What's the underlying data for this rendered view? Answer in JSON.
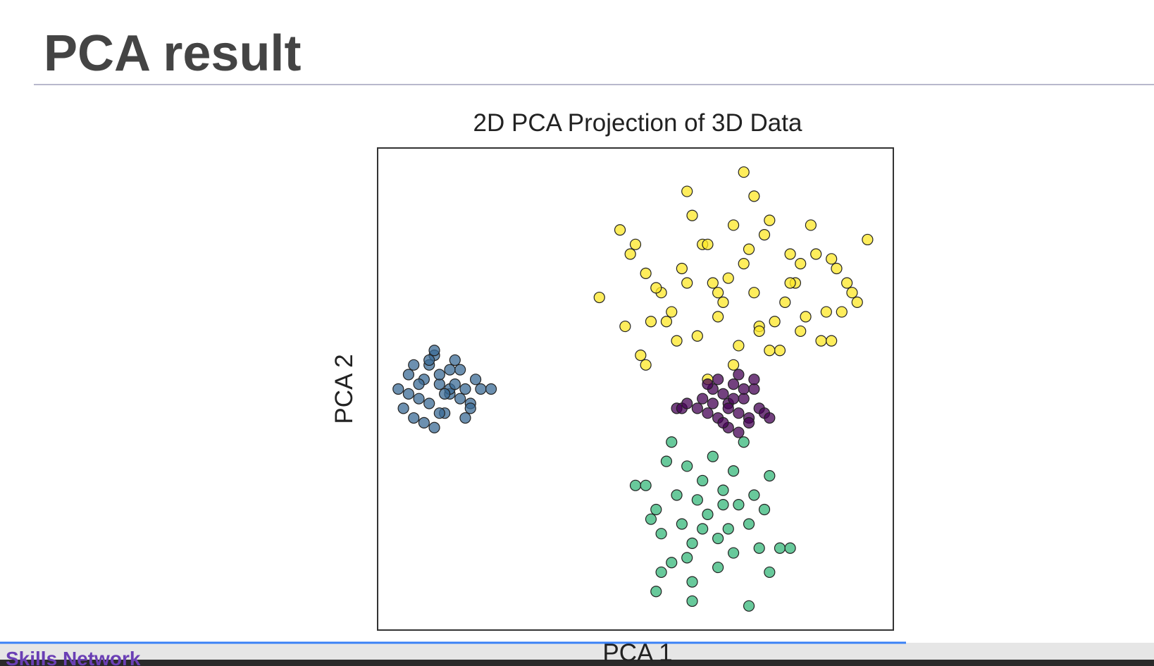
{
  "header": {
    "title": "PCA result"
  },
  "chart_data": {
    "type": "scatter",
    "title": "2D PCA Projection of 3D Data",
    "x_label": "PCA 1",
    "y_label": "PCA 2",
    "xlim": [
      0,
      100
    ],
    "ylim": [
      0,
      100
    ],
    "series": [
      {
        "color": "#3b6b96",
        "x": [
          4,
          6,
          8,
          10,
          12,
          14,
          16,
          18,
          20,
          22,
          5,
          7,
          9,
          11,
          13,
          15,
          17,
          19,
          6,
          8,
          10,
          12,
          14,
          16,
          18,
          9,
          11,
          13,
          15,
          7,
          10,
          12,
          14,
          17,
          11
        ],
        "values": [
          50,
          53,
          48,
          55,
          51,
          49,
          54,
          47,
          50,
          50,
          46,
          44,
          52,
          57,
          45,
          56,
          44,
          52,
          49,
          51,
          47,
          53,
          50,
          48,
          46,
          43,
          42,
          49,
          51,
          55,
          56,
          45,
          54,
          50,
          58
        ]
      },
      {
        "color": "#fde725",
        "x": [
          43,
          47,
          49,
          52,
          55,
          57,
          59,
          61,
          63,
          65,
          67,
          69,
          71,
          73,
          75,
          77,
          79,
          81,
          83,
          85,
          87,
          89,
          91,
          93,
          95,
          48,
          53,
          58,
          62,
          66,
          70,
          74,
          78,
          82,
          86,
          90,
          50,
          54,
          60,
          64,
          68,
          72,
          76,
          80,
          84,
          88,
          92,
          51,
          56,
          66,
          74,
          80,
          88,
          71,
          60,
          73,
          82,
          52,
          69,
          76,
          64
        ],
        "values": [
          69,
          83,
          78,
          74,
          70,
          66,
          75,
          86,
          80,
          72,
          68,
          84,
          76,
          70,
          82,
          64,
          68,
          72,
          65,
          78,
          66,
          75,
          72,
          68,
          81,
          63,
          64,
          60,
          61,
          65,
          59,
          63,
          58,
          62,
          60,
          66,
          80,
          71,
          72,
          80,
          73,
          79,
          85,
          78,
          84,
          77,
          70,
          57,
          64,
          70,
          62,
          72,
          60,
          95,
          91,
          90,
          76,
          55,
          55,
          58,
          52
        ]
      },
      {
        "color": "#35b779",
        "x": [
          50,
          52,
          54,
          55,
          56,
          57,
          58,
          59,
          60,
          61,
          62,
          63,
          64,
          65,
          66,
          67,
          68,
          69,
          70,
          71,
          72,
          73,
          74,
          75,
          76,
          78,
          80,
          54,
          57,
          60,
          63,
          66,
          69,
          72,
          55,
          61,
          67,
          53,
          76,
          61
        ],
        "values": [
          30,
          30,
          25,
          20,
          35,
          39,
          28,
          22,
          34,
          18,
          27,
          31,
          24,
          36,
          19,
          29,
          21,
          33,
          26,
          39,
          22,
          28,
          17,
          25,
          32,
          17,
          17,
          8,
          14,
          15,
          21,
          13,
          16,
          5,
          12,
          10,
          26,
          23,
          12,
          6
        ]
      },
      {
        "color": "#440154",
        "x": [
          58,
          59,
          60,
          62,
          63,
          64,
          65,
          66,
          67,
          68,
          69,
          70,
          71,
          72,
          73,
          74,
          75,
          76,
          64,
          66,
          68,
          70,
          72,
          65,
          67,
          69,
          71,
          73,
          68,
          70
        ],
        "values": [
          46,
          46,
          47,
          46,
          48,
          45,
          50,
          44,
          49,
          47,
          51,
          45,
          48,
          44,
          50,
          46,
          45,
          44,
          51,
          52,
          42,
          41,
          43,
          47,
          43,
          48,
          50,
          52,
          46,
          53
        ]
      }
    ]
  },
  "footer": {
    "brand": "Skills Network"
  }
}
